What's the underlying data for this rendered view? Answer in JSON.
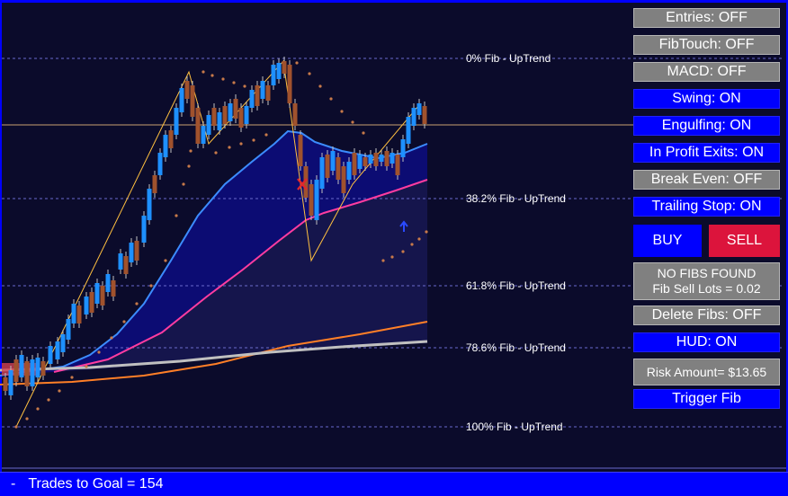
{
  "fib_levels": [
    {
      "label": "0% Fib - UpTrend"
    },
    {
      "label": "38.2% Fib - UpTrend"
    },
    {
      "label": "61.8% Fib - UpTrend"
    },
    {
      "label": "78.6% Fib - UpTrend"
    },
    {
      "label": "100% Fib - UpTrend"
    }
  ],
  "panel": {
    "entries": "Entries: OFF",
    "fibtouch": "FibTouch: OFF",
    "macd": "MACD: OFF",
    "swing": "Swing: ON",
    "engulfing": "Engulfing: ON",
    "in_profit_exits": "In Profit Exits: ON",
    "break_even": "Break Even: OFF",
    "trailing_stop": "Trailing Stop: ON",
    "buy": "BUY",
    "sell": "SELL",
    "fib_status_line1": "NO FIBS FOUND",
    "fib_status_line2": "Fib Sell Lots = 0.02",
    "delete_fibs": "Delete Fibs: OFF",
    "hud": "HUD: ON",
    "risk_amount": "Risk Amount= $13.65",
    "trigger_fib": "Trigger Fib"
  },
  "status_bar": {
    "dash": "-",
    "text": "Trades to Goal = 154"
  },
  "colors": {
    "background": "#0b0b2b",
    "bull_candle": "#1e90ff",
    "bear_candle": "#a0522d",
    "on_button": "#0000ff",
    "off_button": "#808080",
    "sell_button": "#dc143c"
  }
}
